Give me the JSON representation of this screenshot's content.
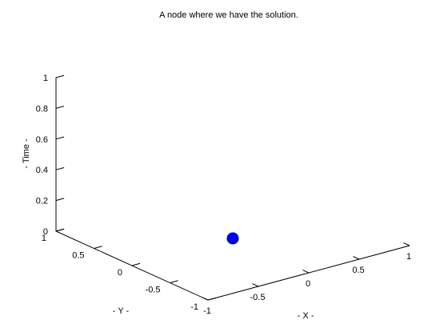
{
  "chart_data": {
    "type": "scatter",
    "projection": "3d",
    "title": "A node where we have the solution.",
    "xlabel": "- X -",
    "ylabel": "- Y -",
    "zlabel": "- Time -",
    "xlim": [
      -1,
      1
    ],
    "ylim": [
      -1,
      1
    ],
    "zlim": [
      0,
      1
    ],
    "x_ticks": [
      {
        "value": -1,
        "label": "-1"
      },
      {
        "value": -0.5,
        "label": "-0.5"
      },
      {
        "value": 0,
        "label": "0"
      },
      {
        "value": 0.5,
        "label": "0.5"
      },
      {
        "value": 1,
        "label": "1"
      }
    ],
    "y_ticks": [
      {
        "value": -1,
        "label": "-1"
      },
      {
        "value": -0.5,
        "label": "-0.5"
      },
      {
        "value": 0,
        "label": "0"
      },
      {
        "value": 0.5,
        "label": "0.5"
      },
      {
        "value": 1,
        "label": "1"
      }
    ],
    "z_ticks": [
      {
        "value": 0,
        "label": "0"
      },
      {
        "value": 0.2,
        "label": "0.2"
      },
      {
        "value": 0.4,
        "label": "0.4"
      },
      {
        "value": 0.6,
        "label": "0.6"
      },
      {
        "value": 0.8,
        "label": "0.8"
      },
      {
        "value": 1,
        "label": "1"
      }
    ],
    "grid": false,
    "points": [
      {
        "x": 0,
        "y": 0,
        "z": 0,
        "color": "#0000ff",
        "edge_color": "#000080"
      }
    ]
  }
}
